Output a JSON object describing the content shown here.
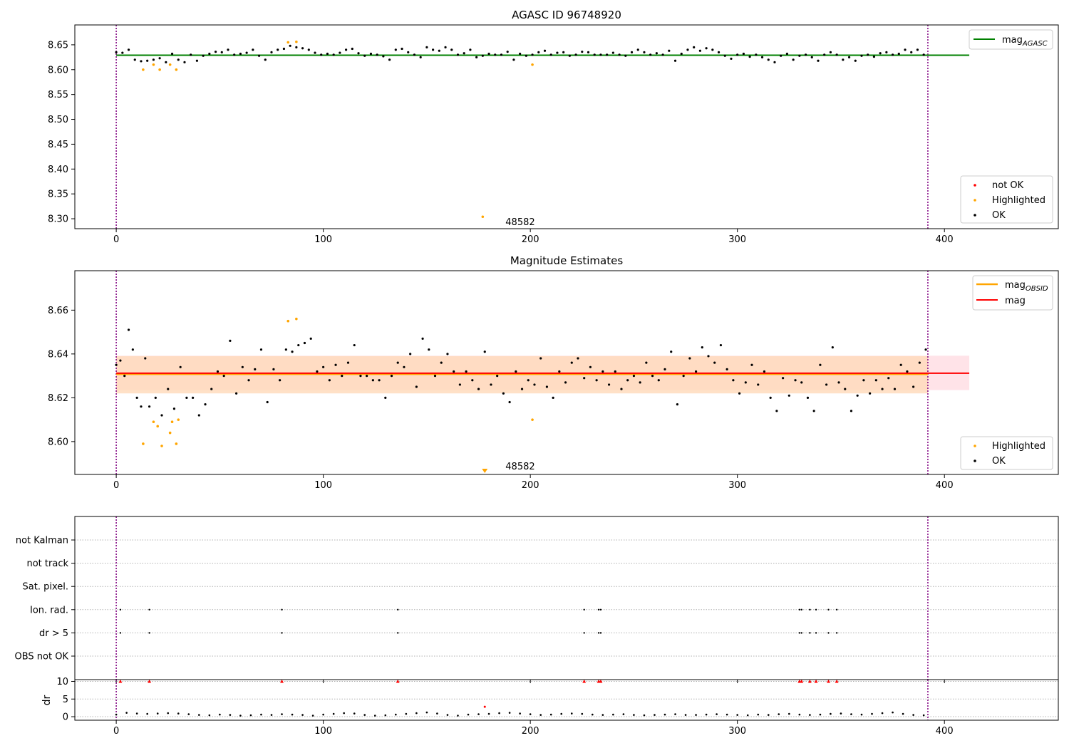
{
  "colors": {
    "ok": "#000000",
    "highlighted": "#ffa500",
    "not_ok": "#ff0000",
    "agasc_line": "#008000",
    "mag_line": "#ff0000",
    "mag_obsid_line": "#ffa500",
    "band_mag": "#ffc0cb",
    "band_obsid": "#ffdab9",
    "vline": "#800080"
  },
  "chart_data": [
    {
      "type": "scatter",
      "title": "AGASC ID 96748920",
      "xlim": [
        -20,
        455
      ],
      "ylim": [
        8.28,
        8.69
      ],
      "xticks": [
        0,
        100,
        200,
        300,
        400
      ],
      "yticks": [
        8.3,
        8.35,
        8.4,
        8.45,
        8.5,
        8.55,
        8.6,
        8.65
      ],
      "vlines": [
        0,
        392
      ],
      "hline": {
        "y": 8.629,
        "x": [
          0,
          412
        ],
        "label": "mag",
        "label_sub": "AGASC"
      },
      "annotation": {
        "text": "48582",
        "x": 188,
        "y": 8.29
      },
      "legend_points": [
        "not OK",
        "Highlighted",
        "OK"
      ],
      "series": [
        {
          "name": "OK",
          "x": [
            0,
            3,
            6,
            9,
            12,
            15,
            18,
            21,
            24,
            27,
            30,
            33,
            36,
            39,
            42,
            45,
            48,
            51,
            54,
            57,
            60,
            63,
            66,
            69,
            72,
            75,
            78,
            81,
            84,
            87,
            90,
            93,
            96,
            99,
            102,
            105,
            108,
            111,
            114,
            117,
            120,
            123,
            126,
            129,
            132,
            135,
            138,
            141,
            144,
            147,
            150,
            153,
            156,
            159,
            162,
            165,
            168,
            171,
            174,
            177,
            180,
            183,
            186,
            189,
            192,
            195,
            198,
            201,
            204,
            207,
            210,
            213,
            216,
            219,
            222,
            225,
            228,
            231,
            234,
            237,
            240,
            243,
            246,
            249,
            252,
            255,
            258,
            261,
            264,
            267,
            270,
            273,
            276,
            279,
            282,
            285,
            288,
            291,
            294,
            297,
            300,
            303,
            306,
            309,
            312,
            315,
            318,
            321,
            324,
            327,
            330,
            333,
            336,
            339,
            342,
            345,
            348,
            351,
            354,
            357,
            360,
            363,
            366,
            369,
            372,
            375,
            378,
            381,
            384,
            387,
            390
          ],
          "y": [
            8.635,
            8.634,
            8.64,
            8.62,
            8.617,
            8.618,
            8.62,
            8.623,
            8.615,
            8.632,
            8.62,
            8.615,
            8.63,
            8.618,
            8.628,
            8.632,
            8.636,
            8.635,
            8.64,
            8.63,
            8.632,
            8.634,
            8.64,
            8.628,
            8.62,
            8.635,
            8.64,
            8.642,
            8.648,
            8.645,
            8.643,
            8.64,
            8.634,
            8.63,
            8.632,
            8.63,
            8.634,
            8.64,
            8.642,
            8.633,
            8.628,
            8.632,
            8.63,
            8.627,
            8.62,
            8.64,
            8.642,
            8.635,
            8.63,
            8.625,
            8.645,
            8.64,
            8.638,
            8.645,
            8.64,
            8.63,
            8.633,
            8.64,
            8.625,
            8.628,
            8.632,
            8.63,
            8.63,
            8.636,
            8.62,
            8.632,
            8.628,
            8.63,
            8.635,
            8.638,
            8.63,
            8.634,
            8.635,
            8.628,
            8.63,
            8.636,
            8.635,
            8.63,
            8.63,
            8.63,
            8.634,
            8.63,
            8.628,
            8.635,
            8.64,
            8.635,
            8.63,
            8.633,
            8.63,
            8.638,
            8.618,
            8.632,
            8.64,
            8.645,
            8.638,
            8.643,
            8.64,
            8.635,
            8.628,
            8.622,
            8.63,
            8.632,
            8.626,
            8.63,
            8.625,
            8.62,
            8.615,
            8.628,
            8.632,
            8.62,
            8.628,
            8.63,
            8.625,
            8.618,
            8.63,
            8.635,
            8.63,
            8.62,
            8.625,
            8.618,
            8.628,
            8.63,
            8.626,
            8.633,
            8.635,
            8.63,
            8.632,
            8.64,
            8.635,
            8.64,
            8.63
          ]
        },
        {
          "name": "Highlighted",
          "x": [
            13,
            18,
            21,
            26,
            29,
            83,
            87,
            177,
            201
          ],
          "y": [
            8.6,
            8.61,
            8.6,
            8.61,
            8.6,
            8.655,
            8.656,
            8.304,
            8.61
          ]
        }
      ]
    },
    {
      "type": "scatter",
      "title": "Magnitude Estimates",
      "xlim": [
        -20,
        455
      ],
      "ylim": [
        8.585,
        8.678
      ],
      "xticks": [
        0,
        100,
        200,
        300,
        400
      ],
      "yticks": [
        8.6,
        8.62,
        8.64,
        8.66
      ],
      "vlines": [
        0,
        392
      ],
      "hlines": [
        {
          "y": 8.6312,
          "x": [
            0,
            412
          ],
          "label": "mag",
          "band": [
            8.6235,
            8.6392
          ]
        },
        {
          "y": 8.6308,
          "x": [
            0,
            392
          ],
          "label": "mag",
          "label_sub": "OBSID",
          "band": [
            8.622,
            8.639
          ]
        }
      ],
      "annotation": {
        "text": "48582",
        "x": 188,
        "y": 8.588
      },
      "legend_points": [
        "Highlighted",
        "OK"
      ],
      "series": [
        {
          "name": "OK",
          "x": [
            0,
            2,
            4,
            6,
            8,
            10,
            12,
            14,
            16,
            19,
            22,
            25,
            28,
            31,
            34,
            37,
            40,
            43,
            46,
            49,
            52,
            55,
            58,
            61,
            64,
            67,
            70,
            73,
            76,
            79,
            82,
            85,
            88,
            91,
            94,
            97,
            100,
            103,
            106,
            109,
            112,
            115,
            118,
            121,
            124,
            127,
            130,
            133,
            136,
            139,
            142,
            145,
            148,
            151,
            154,
            157,
            160,
            163,
            166,
            169,
            172,
            175,
            178,
            181,
            184,
            187,
            190,
            193,
            196,
            199,
            202,
            205,
            208,
            211,
            214,
            217,
            220,
            223,
            226,
            229,
            232,
            235,
            238,
            241,
            244,
            247,
            250,
            253,
            256,
            259,
            262,
            265,
            268,
            271,
            274,
            277,
            280,
            283,
            286,
            289,
            292,
            295,
            298,
            301,
            304,
            307,
            310,
            313,
            316,
            319,
            322,
            325,
            328,
            331,
            334,
            337,
            340,
            343,
            346,
            349,
            352,
            355,
            358,
            361,
            364,
            367,
            370,
            373,
            376,
            379,
            382,
            385,
            388,
            391
          ],
          "y": [
            8.635,
            8.637,
            8.63,
            8.651,
            8.642,
            8.62,
            8.616,
            8.638,
            8.616,
            8.62,
            8.612,
            8.624,
            8.615,
            8.634,
            8.62,
            8.62,
            8.612,
            8.617,
            8.624,
            8.632,
            8.63,
            8.646,
            8.622,
            8.634,
            8.628,
            8.633,
            8.642,
            8.618,
            8.633,
            8.628,
            8.642,
            8.641,
            8.644,
            8.645,
            8.647,
            8.632,
            8.634,
            8.628,
            8.635,
            8.63,
            8.636,
            8.644,
            8.63,
            8.63,
            8.628,
            8.628,
            8.62,
            8.63,
            8.636,
            8.634,
            8.64,
            8.625,
            8.647,
            8.642,
            8.63,
            8.636,
            8.64,
            8.632,
            8.626,
            8.632,
            8.628,
            8.624,
            8.641,
            8.626,
            8.63,
            8.622,
            8.618,
            8.632,
            8.624,
            8.628,
            8.626,
            8.638,
            8.625,
            8.62,
            8.632,
            8.627,
            8.636,
            8.638,
            8.629,
            8.634,
            8.628,
            8.632,
            8.626,
            8.632,
            8.624,
            8.628,
            8.63,
            8.627,
            8.636,
            8.63,
            8.628,
            8.633,
            8.641,
            8.617,
            8.63,
            8.638,
            8.632,
            8.643,
            8.639,
            8.636,
            8.644,
            8.633,
            8.628,
            8.622,
            8.627,
            8.635,
            8.626,
            8.632,
            8.62,
            8.614,
            8.629,
            8.621,
            8.628,
            8.627,
            8.62,
            8.614,
            8.635,
            8.626,
            8.643,
            8.627,
            8.624,
            8.614,
            8.621,
            8.628,
            8.622,
            8.628,
            8.624,
            8.629,
            8.624,
            8.635,
            8.632,
            8.625,
            8.636,
            8.642
          ]
        },
        {
          "name": "Highlighted",
          "x": [
            13,
            18,
            20,
            22,
            26,
            27,
            29,
            30,
            83,
            87,
            201
          ],
          "y": [
            8.599,
            8.609,
            8.607,
            8.598,
            8.604,
            8.609,
            8.599,
            8.61,
            8.655,
            8.656,
            8.61
          ]
        },
        {
          "name": "Highlighted-offscale",
          "x": [
            178
          ],
          "y": [
            8.585
          ]
        }
      ]
    },
    {
      "type": "scatter",
      "title": "",
      "xlim": [
        -20,
        455
      ],
      "yticks_categories": [
        "not Kalman",
        "not track",
        "Sat. pixel.",
        "Ion. rad.",
        "dr > 5",
        "OBS not OK"
      ],
      "vlines": [
        0,
        392
      ],
      "flag_series": [
        {
          "name": "Ion. rad.",
          "x": [
            2,
            16,
            80,
            136,
            226,
            233,
            234,
            330,
            331,
            335,
            338,
            344,
            348
          ]
        },
        {
          "name": "dr > 5",
          "x": [
            2,
            16,
            80,
            136,
            226,
            233,
            234,
            330,
            331,
            335,
            338,
            344,
            348
          ]
        }
      ]
    },
    {
      "type": "scatter",
      "title": "",
      "ylabel": "dr",
      "xlim": [
        -20,
        455
      ],
      "ylim": [
        -1,
        10.5
      ],
      "xticks": [
        0,
        100,
        200,
        300,
        400
      ],
      "yticks": [
        0,
        5,
        10
      ],
      "vlines": [
        0,
        392
      ],
      "capped": {
        "name": "not OK",
        "y": 10,
        "x": [
          2,
          16,
          80,
          136,
          226,
          233,
          234,
          330,
          331,
          335,
          338,
          344,
          348
        ]
      },
      "outlier": {
        "name": "not OK",
        "x": 178,
        "y": 2.8
      },
      "series": [
        {
          "name": "OK",
          "x": [
            0,
            5,
            10,
            15,
            20,
            25,
            30,
            35,
            40,
            45,
            50,
            55,
            60,
            65,
            70,
            75,
            80,
            85,
            90,
            95,
            100,
            105,
            110,
            115,
            120,
            125,
            130,
            135,
            140,
            145,
            150,
            155,
            160,
            165,
            170,
            175,
            180,
            185,
            190,
            195,
            200,
            205,
            210,
            215,
            220,
            225,
            230,
            235,
            240,
            245,
            250,
            255,
            260,
            265,
            270,
            275,
            280,
            285,
            290,
            295,
            300,
            305,
            310,
            315,
            320,
            325,
            330,
            335,
            340,
            345,
            350,
            355,
            360,
            365,
            370,
            375,
            380,
            385,
            390
          ],
          "y": [
            0.6,
            1.1,
            0.9,
            0.8,
            0.9,
            1.0,
            0.9,
            0.7,
            0.5,
            0.4,
            0.6,
            0.5,
            0.3,
            0.4,
            0.6,
            0.5,
            0.7,
            0.6,
            0.5,
            0.3,
            0.6,
            0.8,
            1.0,
            0.9,
            0.5,
            0.3,
            0.4,
            0.6,
            0.8,
            1.0,
            1.2,
            0.9,
            0.5,
            0.3,
            0.6,
            0.7,
            0.8,
            1.0,
            1.1,
            0.9,
            0.7,
            0.5,
            0.6,
            0.8,
            0.9,
            0.8,
            0.6,
            0.5,
            0.6,
            0.7,
            0.5,
            0.4,
            0.5,
            0.6,
            0.7,
            0.5,
            0.5,
            0.6,
            0.7,
            0.6,
            0.5,
            0.4,
            0.6,
            0.5,
            0.7,
            0.8,
            0.6,
            0.5,
            0.6,
            0.8,
            0.9,
            0.7,
            0.6,
            0.8,
            1.0,
            1.2,
            0.8,
            0.5,
            0.4
          ]
        }
      ]
    }
  ]
}
